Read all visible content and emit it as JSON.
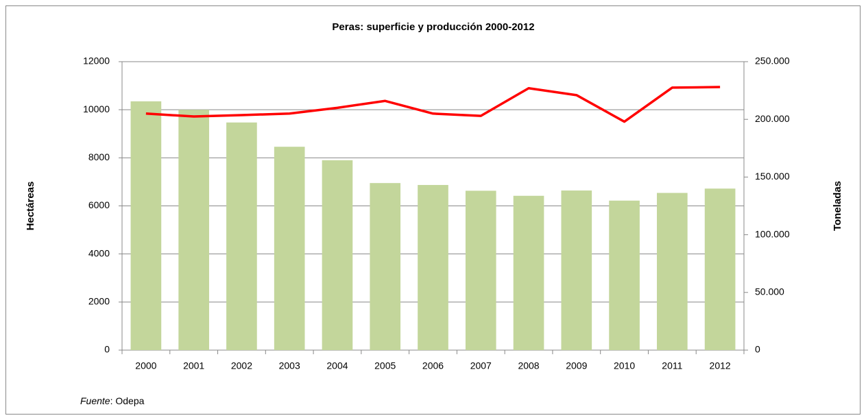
{
  "chart_data": {
    "type": "bar",
    "title": "Peras: superficie y producción 2000-2012",
    "ylabel": "Hectáreas",
    "y2label": "Toneladas",
    "categories": [
      "2000",
      "2001",
      "2002",
      "2003",
      "2004",
      "2005",
      "2006",
      "2007",
      "2008",
      "2009",
      "2010",
      "2011",
      "2012"
    ],
    "series": [
      {
        "type": "bar",
        "color": "#c3d69b",
        "values": [
          10350,
          10000,
          9470,
          8460,
          7900,
          6950,
          6870,
          6630,
          6420,
          6640,
          6220,
          6540,
          6720
        ]
      },
      {
        "type": "line",
        "axis": "y2",
        "color": "#ff0000",
        "values": [
          205000,
          202500,
          203700,
          205000,
          210000,
          216000,
          205000,
          203000,
          227000,
          221000,
          198000,
          227500,
          228000
        ]
      }
    ],
    "ylim": [
      0,
      12000
    ],
    "yticks": [
      0,
      2000,
      4000,
      6000,
      8000,
      10000,
      12000
    ],
    "y2lim": [
      0,
      250000
    ],
    "y2ticks": [
      0,
      {
        "value": 50000,
        "label": "50.000"
      },
      {
        "value": 100000,
        "label": "100.000"
      },
      {
        "value": 150000,
        "label": "150.000"
      },
      {
        "value": 200000,
        "label": "200.000"
      },
      {
        "value": 250000,
        "label": "250.000"
      }
    ],
    "grid": true,
    "ylabel_color": "#77933c",
    "y2label_color": "#ff0000",
    "source_label": "Fuente",
    "source": ": Odepa"
  }
}
